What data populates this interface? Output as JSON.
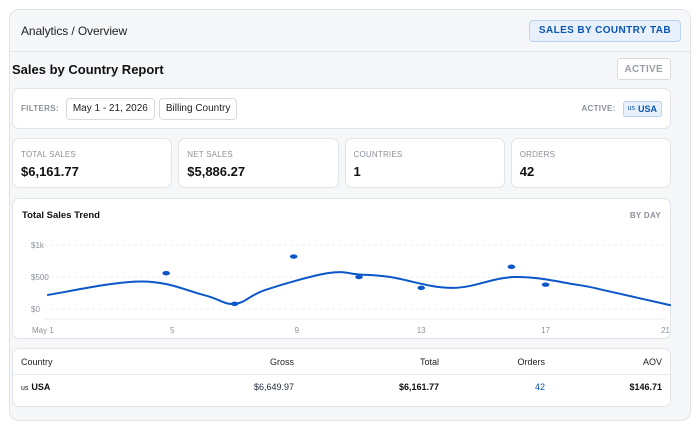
{
  "header": {
    "breadcrumb": "Analytics / Overview",
    "tab_button": "SALES BY COUNTRY TAB"
  },
  "report": {
    "title": "Sales by Country Report",
    "status": "ACTIVE"
  },
  "filters": {
    "label": "FILTERS:",
    "date_range": "May 1 - 21, 2026",
    "dimension": "Billing Country",
    "active_label": "ACTIVE:",
    "active_flag": "us",
    "active_country": "USA"
  },
  "kpis": [
    {
      "label": "TOTAL SALES",
      "value": "$6,161.77"
    },
    {
      "label": "NET SALES",
      "value": "$5,886.27"
    },
    {
      "label": "COUNTRIES",
      "value": "1"
    },
    {
      "label": "ORDERS",
      "value": "42"
    }
  ],
  "chart": {
    "title": "Total Sales Trend",
    "period": "BY DAY"
  },
  "chart_data": {
    "type": "line",
    "title": "Total Sales Trend",
    "x_ticks": [
      "May 1",
      "5",
      "9",
      "13",
      "17",
      "21"
    ],
    "y_ticks": [
      "$1k",
      "$500",
      "$0"
    ],
    "ylim": [
      0,
      1000
    ],
    "series": [
      {
        "values_by_day": [
          [
            1,
            220
          ],
          [
            4,
            430
          ],
          [
            6,
            220
          ],
          [
            7,
            80
          ],
          [
            8,
            300
          ],
          [
            10,
            560
          ],
          [
            11,
            540
          ],
          [
            12,
            500
          ],
          [
            14,
            330
          ],
          [
            16,
            500
          ],
          [
            18,
            380
          ],
          [
            19,
            280
          ],
          [
            21,
            60
          ]
        ],
        "markers": [
          [
            4.8,
            560
          ],
          [
            7,
            80
          ],
          [
            8.9,
            820
          ],
          [
            11,
            500
          ],
          [
            13,
            330
          ],
          [
            15.9,
            660
          ],
          [
            17,
            380
          ]
        ]
      }
    ],
    "color": "#0b56c8",
    "grid": true
  },
  "table": {
    "columns": [
      "Country",
      "Gross",
      "Total",
      "Orders",
      "AOV"
    ],
    "rows": [
      {
        "flag": "us",
        "country": "USA",
        "gross": "$6,649.97",
        "total": "$6,161.77",
        "orders": "42",
        "aov": "$146.71"
      }
    ]
  }
}
